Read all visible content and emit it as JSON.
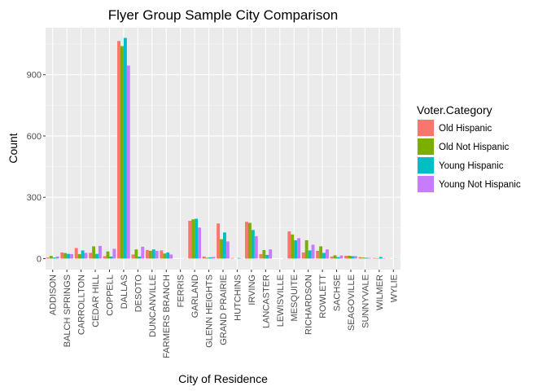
{
  "chart_data": {
    "type": "bar",
    "title": "Flyer Group Sample City Comparison",
    "xlabel": "City of Residence",
    "ylabel": "Count",
    "ylim": [
      -54,
      1130
    ],
    "yticks": [
      0,
      300,
      600,
      900
    ],
    "grid": true,
    "legend_position": "right",
    "legend_title": "Voter.Category",
    "categories": [
      "ADDISON",
      "BALCH SPRINGS",
      "CARROLLTON",
      "CEDAR HILL",
      "COPPELL",
      "DALLAS",
      "DESOTO",
      "DUNCANVILLE",
      "FARMERS BRANCH",
      "FERRIS",
      "GARLAND",
      "GLENN HEIGHTS",
      "GRAND PRAIRIE",
      "HUTCHINS",
      "IRVING",
      "LANCASTER",
      "LEWISVILLE",
      "MESQUITE",
      "RICHARDSON",
      "ROWLETT",
      "SACHSE",
      "SEAGOVILLE",
      "SUNNYVALE",
      "WILMER",
      "WYLIE"
    ],
    "series": [
      {
        "name": "Old Hispanic",
        "color": "#F8766D",
        "values": [
          5,
          30,
          52,
          28,
          12,
          1065,
          20,
          42,
          40,
          0,
          185,
          10,
          172,
          3,
          180,
          22,
          0,
          133,
          30,
          38,
          10,
          14,
          7,
          3,
          1
        ]
      },
      {
        "name": "Old Not Hispanic",
        "color": "#7CAE00",
        "values": [
          13,
          27,
          22,
          60,
          35,
          1040,
          45,
          38,
          25,
          0,
          192,
          4,
          95,
          0,
          175,
          42,
          0,
          118,
          90,
          60,
          16,
          14,
          5,
          2,
          0
        ]
      },
      {
        "name": "Young Hispanic",
        "color": "#00BFC4",
        "values": [
          5,
          23,
          40,
          23,
          10,
          1080,
          10,
          45,
          30,
          0,
          195,
          6,
          128,
          3,
          140,
          18,
          0,
          90,
          40,
          28,
          7,
          12,
          4,
          8,
          1
        ]
      },
      {
        "name": "Young Not Hispanic",
        "color": "#C77CFF",
        "values": [
          10,
          22,
          28,
          62,
          48,
          945,
          58,
          38,
          20,
          1,
          152,
          8,
          84,
          1,
          110,
          45,
          1,
          100,
          68,
          45,
          15,
          12,
          3,
          2,
          1
        ]
      }
    ]
  }
}
